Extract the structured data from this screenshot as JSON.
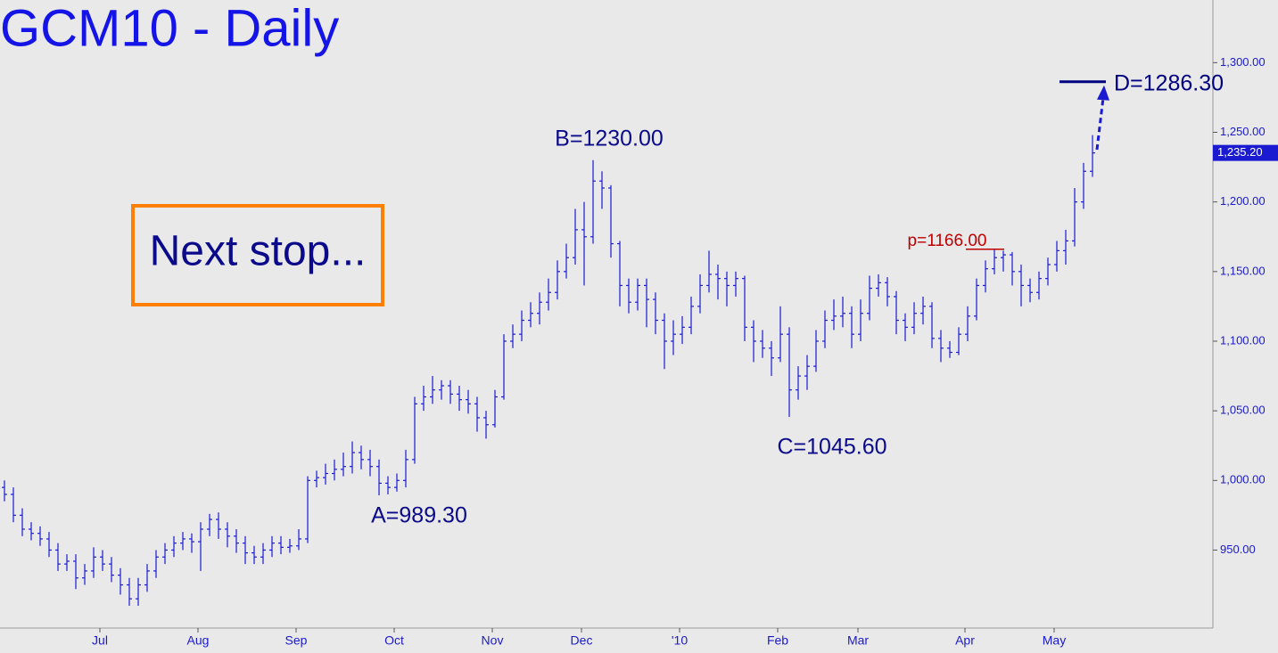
{
  "chart_data": {
    "type": "ohlc",
    "title": "GCM10 - Daily",
    "callout": "Next stop...",
    "color": "#1a1ad0",
    "ylim": [
      894,
      1345
    ],
    "yticks": [
      {
        "value": 950,
        "label": "950.00"
      },
      {
        "value": 1000,
        "label": "1,000.00"
      },
      {
        "value": 1050,
        "label": "1,050.00"
      },
      {
        "value": 1100,
        "label": "1,100.00"
      },
      {
        "value": 1150,
        "label": "1,150.00"
      },
      {
        "value": 1200,
        "label": "1,200.00"
      },
      {
        "value": 1250,
        "label": "1,250.00"
      },
      {
        "value": 1300,
        "label": "1,300.00"
      }
    ],
    "last_price": {
      "value": 1235.2,
      "label": "1,235.20"
    },
    "annotations": [
      "A=989.30",
      "B=1230.00",
      "C=1045.60"
    ],
    "levels": [
      {
        "label": "p=1166.00",
        "value": 1166,
        "color": "#c00000"
      },
      {
        "label": "D=1286.30",
        "value": 1286.3,
        "color": "#000080"
      }
    ],
    "categories": [
      null,
      null,
      null,
      null,
      null,
      null,
      null,
      null,
      null,
      null,
      null,
      "Jul",
      null,
      null,
      null,
      null,
      null,
      null,
      null,
      null,
      null,
      null,
      "Aug",
      null,
      null,
      null,
      null,
      null,
      null,
      null,
      null,
      null,
      null,
      "Sep",
      null,
      null,
      null,
      null,
      null,
      null,
      null,
      null,
      null,
      null,
      "Oct",
      null,
      null,
      null,
      null,
      null,
      null,
      null,
      null,
      null,
      null,
      "Nov",
      null,
      null,
      null,
      null,
      null,
      null,
      null,
      null,
      null,
      "Dec",
      null,
      null,
      null,
      null,
      null,
      null,
      null,
      null,
      null,
      null,
      "'10",
      null,
      null,
      null,
      null,
      null,
      null,
      null,
      null,
      null,
      null,
      "Feb",
      null,
      null,
      null,
      null,
      null,
      null,
      null,
      null,
      "Mar",
      null,
      null,
      null,
      null,
      null,
      null,
      null,
      null,
      null,
      null,
      null,
      "Apr",
      null,
      null,
      null,
      null,
      null,
      null,
      null,
      null,
      null,
      "May",
      null,
      null,
      null,
      null
    ],
    "open": [
      995,
      990,
      975,
      965,
      962,
      958,
      950,
      940,
      942,
      930,
      935,
      945,
      940,
      932,
      925,
      915,
      925,
      935,
      945,
      950,
      955,
      958,
      956,
      965,
      972,
      965,
      960,
      955,
      948,
      945,
      950,
      955,
      952,
      953,
      958,
      1000,
      1002,
      1005,
      1008,
      1010,
      1020,
      1015,
      1010,
      998,
      995,
      1000,
      1015,
      1055,
      1060,
      1065,
      1068,
      1062,
      1058,
      1055,
      1045,
      1040,
      1060,
      1100,
      1105,
      1115,
      1120,
      1128,
      1135,
      1150,
      1160,
      1180,
      1175,
      1215,
      1210,
      1170,
      1140,
      1128,
      1140,
      1130,
      1115,
      1100,
      1105,
      1110,
      1125,
      1140,
      1148,
      1145,
      1140,
      1145,
      1110,
      1100,
      1095,
      1088,
      1105,
      1065,
      1075,
      1082,
      1100,
      1115,
      1118,
      1120,
      1105,
      1120,
      1138,
      1142,
      1132,
      1115,
      1110,
      1120,
      1125,
      1102,
      1095,
      1092,
      1105,
      1118,
      1140,
      1152,
      1160,
      1162,
      1150,
      1140,
      1135,
      1145,
      1155,
      1165,
      1172,
      1200,
      1222
    ],
    "high": [
      1000,
      995,
      980,
      970,
      967,
      963,
      955,
      947,
      947,
      940,
      952,
      950,
      945,
      937,
      930,
      930,
      940,
      950,
      955,
      960,
      963,
      962,
      970,
      976,
      977,
      970,
      965,
      960,
      953,
      955,
      960,
      960,
      958,
      965,
      1003,
      1007,
      1012,
      1015,
      1020,
      1028,
      1025,
      1022,
      1015,
      1003,
      1005,
      1022,
      1060,
      1068,
      1075,
      1072,
      1072,
      1068,
      1065,
      1060,
      1050,
      1065,
      1105,
      1112,
      1122,
      1128,
      1135,
      1145,
      1158,
      1170,
      1195,
      1200,
      1230,
      1222,
      1212,
      1172,
      1145,
      1145,
      1145,
      1135,
      1120,
      1115,
      1118,
      1132,
      1148,
      1165,
      1155,
      1150,
      1150,
      1147,
      1115,
      1108,
      1100,
      1125,
      1110,
      1082,
      1090,
      1108,
      1122,
      1130,
      1132,
      1125,
      1130,
      1147,
      1148,
      1146,
      1136,
      1120,
      1128,
      1132,
      1128,
      1108,
      1100,
      1110,
      1125,
      1145,
      1158,
      1166,
      1165,
      1164,
      1155,
      1145,
      1150,
      1160,
      1172,
      1180,
      1210,
      1228,
      1248
    ],
    "low": [
      985,
      970,
      960,
      957,
      953,
      945,
      935,
      935,
      922,
      925,
      930,
      935,
      927,
      918,
      910,
      910,
      920,
      930,
      940,
      945,
      950,
      948,
      935,
      960,
      958,
      952,
      948,
      940,
      940,
      940,
      945,
      947,
      948,
      950,
      955,
      995,
      997,
      1000,
      1003,
      1005,
      1008,
      1003,
      989.3,
      990,
      992,
      995,
      1012,
      1050,
      1055,
      1058,
      1055,
      1050,
      1048,
      1035,
      1030,
      1038,
      1058,
      1095,
      1100,
      1110,
      1112,
      1122,
      1130,
      1145,
      1155,
      1140,
      1170,
      1195,
      1160,
      1125,
      1120,
      1122,
      1110,
      1105,
      1080,
      1090,
      1098,
      1105,
      1120,
      1135,
      1130,
      1125,
      1132,
      1100,
      1085,
      1088,
      1075,
      1085,
      1045.6,
      1058,
      1065,
      1078,
      1095,
      1108,
      1110,
      1095,
      1100,
      1115,
      1132,
      1125,
      1105,
      1100,
      1105,
      1112,
      1095,
      1085,
      1088,
      1090,
      1100,
      1115,
      1135,
      1148,
      1150,
      1140,
      1125,
      1128,
      1130,
      1140,
      1150,
      1155,
      1168,
      1195,
      1218
    ],
    "close": [
      990,
      975,
      965,
      962,
      958,
      950,
      940,
      942,
      930,
      935,
      945,
      940,
      932,
      925,
      915,
      925,
      935,
      945,
      950,
      955,
      958,
      956,
      965,
      972,
      965,
      960,
      955,
      948,
      945,
      950,
      955,
      952,
      953,
      958,
      1000,
      1002,
      1005,
      1008,
      1010,
      1020,
      1015,
      1010,
      998,
      995,
      1000,
      1015,
      1055,
      1060,
      1065,
      1068,
      1062,
      1058,
      1055,
      1045,
      1040,
      1060,
      1100,
      1105,
      1115,
      1120,
      1128,
      1135,
      1150,
      1160,
      1180,
      1175,
      1215,
      1210,
      1170,
      1140,
      1128,
      1140,
      1130,
      1115,
      1100,
      1105,
      1110,
      1125,
      1140,
      1148,
      1145,
      1140,
      1145,
      1110,
      1100,
      1095,
      1088,
      1105,
      1065,
      1075,
      1082,
      1100,
      1115,
      1118,
      1120,
      1105,
      1120,
      1138,
      1142,
      1132,
      1115,
      1110,
      1120,
      1125,
      1102,
      1095,
      1092,
      1105,
      1118,
      1140,
      1152,
      1160,
      1162,
      1150,
      1140,
      1135,
      1145,
      1155,
      1165,
      1172,
      1200,
      1222,
      1235.2
    ]
  }
}
